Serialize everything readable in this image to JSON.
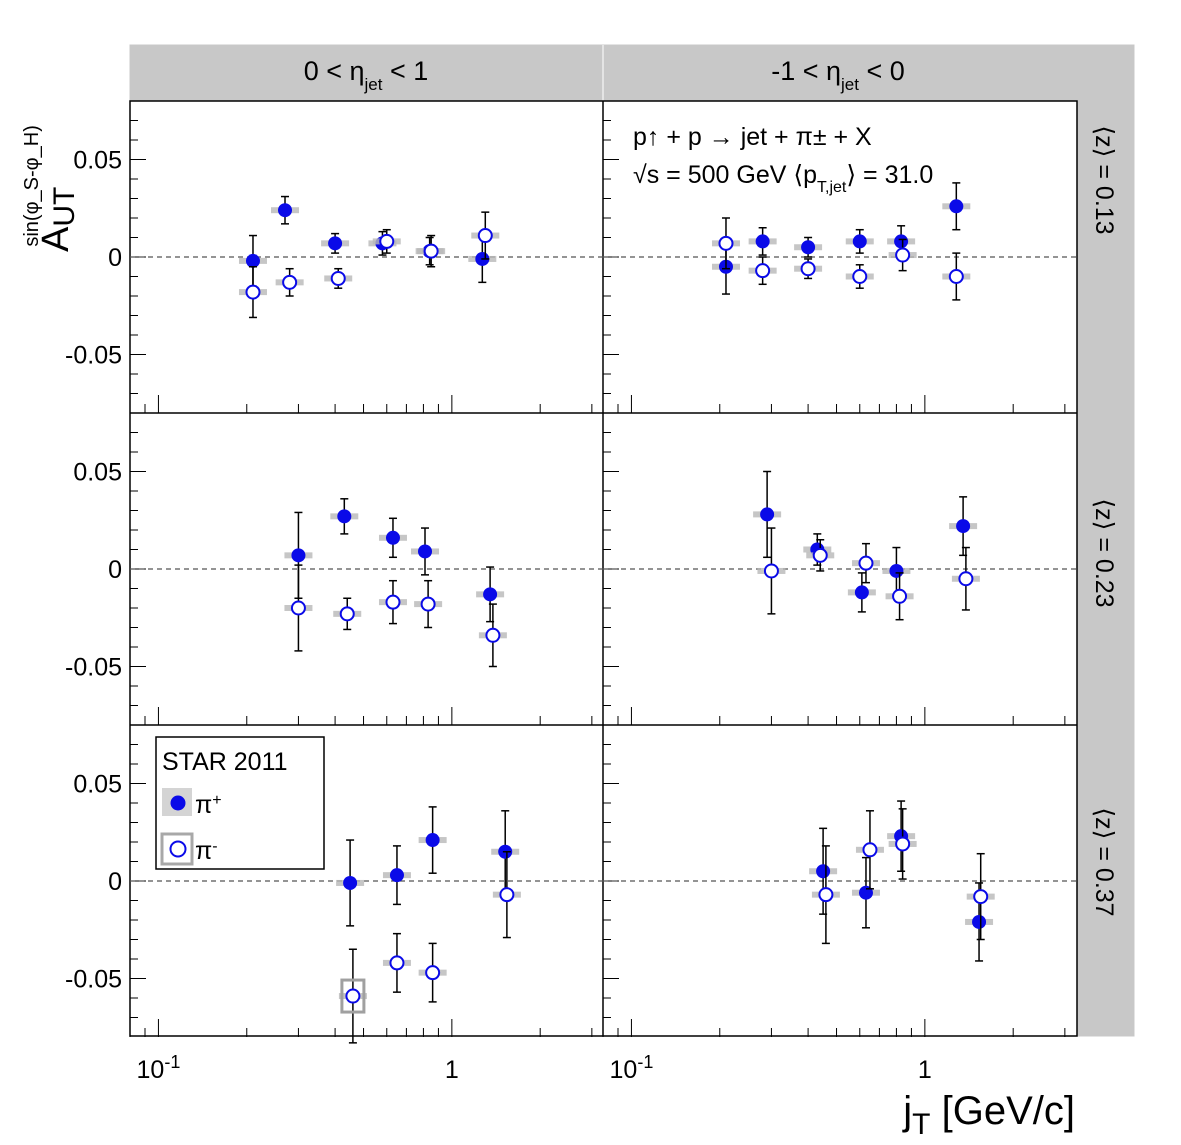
{
  "chart_data": {
    "type": "scatter",
    "experiment": "STAR 2011",
    "x_axis": {
      "label_main": "j",
      "label_sub": "T",
      "label_rest": " [GeV/c]",
      "scale": "log",
      "range": [
        0.08,
        3.3
      ],
      "tick_labels": [
        {
          "value": 0.1,
          "base": "10",
          "exp": "-1"
        },
        {
          "value": 1,
          "base": "1",
          "exp": ""
        }
      ]
    },
    "y_axis": {
      "label_main": "A",
      "label_sub": "UT",
      "label_sup": "sin(φ_S-φ_H)",
      "range": [
        -0.08,
        0.08
      ],
      "ticks": [
        0.05,
        0,
        -0.05
      ],
      "tick_labels": [
        "0.05",
        "0",
        "-0.05"
      ]
    },
    "columns": [
      {
        "pre": "0 < η",
        "sub": "jet",
        "post": " < 1"
      },
      {
        "pre": "-1 < η",
        "sub": "jet",
        "post": " < 0"
      }
    ],
    "rows": [
      "⟨z⟩ = 0.13",
      "⟨z⟩ = 0.23",
      "⟨z⟩ = 0.37"
    ],
    "annotation": {
      "line1": "p↑ + p → jet + π± + X",
      "line2_a": "√s = 500 GeV ⟨p",
      "line2_sub": "T,jet",
      "line2_b": "⟩ = 31.0"
    },
    "legend": {
      "title": "STAR 2011",
      "placement": "top-left of bottom-left panel",
      "entries": [
        {
          "label": "π",
          "sup": "+",
          "marker": "filled-circle"
        },
        {
          "label": "π",
          "sup": "-",
          "marker": "open-circle"
        }
      ]
    },
    "colors": {
      "marker": "#0a0ae8",
      "strip": "#c8c8c8",
      "syserr": "#a8a8a8"
    },
    "series": [
      {
        "name": "π+",
        "marker": "filled",
        "panels": [
          {
            "row": 0,
            "col": 0,
            "points": [
              {
                "x": 0.21,
                "y": -0.002,
                "err": 0.013
              },
              {
                "x": 0.27,
                "y": 0.024,
                "err": 0.007
              },
              {
                "x": 0.4,
                "y": 0.007,
                "err": 0.005
              },
              {
                "x": 0.58,
                "y": 0.007,
                "err": 0.006
              },
              {
                "x": 0.84,
                "y": 0.003,
                "err": 0.007
              },
              {
                "x": 1.27,
                "y": -0.001,
                "err": 0.012
              }
            ]
          },
          {
            "row": 0,
            "col": 1,
            "points": [
              {
                "x": 0.21,
                "y": -0.005,
                "err": 0.014
              },
              {
                "x": 0.28,
                "y": 0.008,
                "err": 0.007
              },
              {
                "x": 0.4,
                "y": 0.005,
                "err": 0.005
              },
              {
                "x": 0.6,
                "y": 0.008,
                "err": 0.006
              },
              {
                "x": 0.83,
                "y": 0.008,
                "err": 0.008
              },
              {
                "x": 1.28,
                "y": 0.026,
                "err": 0.012
              }
            ]
          },
          {
            "row": 1,
            "col": 0,
            "points": [
              {
                "x": 0.3,
                "y": 0.007,
                "err": 0.022
              },
              {
                "x": 0.43,
                "y": 0.027,
                "err": 0.009
              },
              {
                "x": 0.63,
                "y": 0.016,
                "err": 0.01
              },
              {
                "x": 0.81,
                "y": 0.009,
                "err": 0.012
              },
              {
                "x": 1.35,
                "y": -0.013,
                "err": 0.014
              }
            ]
          },
          {
            "row": 1,
            "col": 1,
            "points": [
              {
                "x": 0.29,
                "y": 0.028,
                "err": 0.022
              },
              {
                "x": 0.43,
                "y": 0.01,
                "err": 0.008
              },
              {
                "x": 0.61,
                "y": -0.012,
                "err": 0.01
              },
              {
                "x": 0.8,
                "y": -0.001,
                "err": 0.012
              },
              {
                "x": 1.35,
                "y": 0.022,
                "err": 0.015
              }
            ]
          },
          {
            "row": 2,
            "col": 0,
            "points": [
              {
                "x": 0.45,
                "y": -0.001,
                "err": 0.022
              },
              {
                "x": 0.65,
                "y": 0.003,
                "err": 0.015
              },
              {
                "x": 0.86,
                "y": 0.021,
                "err": 0.017
              },
              {
                "x": 1.52,
                "y": 0.015,
                "err": 0.021
              }
            ]
          },
          {
            "row": 2,
            "col": 1,
            "points": [
              {
                "x": 0.45,
                "y": 0.005,
                "err": 0.022
              },
              {
                "x": 0.63,
                "y": -0.006,
                "err": 0.018
              },
              {
                "x": 0.83,
                "y": 0.023,
                "err": 0.018
              },
              {
                "x": 1.53,
                "y": -0.021,
                "err": 0.02
              }
            ]
          }
        ]
      },
      {
        "name": "π-",
        "marker": "open",
        "panels": [
          {
            "row": 0,
            "col": 0,
            "points": [
              {
                "x": 0.21,
                "y": -0.018,
                "err": 0.013
              },
              {
                "x": 0.28,
                "y": -0.013,
                "err": 0.007
              },
              {
                "x": 0.41,
                "y": -0.011,
                "err": 0.005
              },
              {
                "x": 0.6,
                "y": 0.008,
                "err": 0.006
              },
              {
                "x": 0.85,
                "y": 0.003,
                "err": 0.008
              },
              {
                "x": 1.3,
                "y": 0.011,
                "err": 0.012
              }
            ]
          },
          {
            "row": 0,
            "col": 1,
            "points": [
              {
                "x": 0.21,
                "y": 0.007,
                "err": 0.013
              },
              {
                "x": 0.28,
                "y": -0.007,
                "err": 0.007
              },
              {
                "x": 0.4,
                "y": -0.006,
                "err": 0.005
              },
              {
                "x": 0.6,
                "y": -0.01,
                "err": 0.006
              },
              {
                "x": 0.84,
                "y": 0.001,
                "err": 0.008
              },
              {
                "x": 1.28,
                "y": -0.01,
                "err": 0.012
              }
            ]
          },
          {
            "row": 1,
            "col": 0,
            "points": [
              {
                "x": 0.3,
                "y": -0.02,
                "err": 0.022
              },
              {
                "x": 0.44,
                "y": -0.023,
                "err": 0.008
              },
              {
                "x": 0.63,
                "y": -0.017,
                "err": 0.011
              },
              {
                "x": 0.83,
                "y": -0.018,
                "err": 0.012
              },
              {
                "x": 1.38,
                "y": -0.034,
                "err": 0.016
              }
            ]
          },
          {
            "row": 1,
            "col": 1,
            "points": [
              {
                "x": 0.3,
                "y": -0.001,
                "err": 0.022
              },
              {
                "x": 0.44,
                "y": 0.007,
                "err": 0.008
              },
              {
                "x": 0.63,
                "y": 0.003,
                "err": 0.01
              },
              {
                "x": 0.82,
                "y": -0.014,
                "err": 0.012
              },
              {
                "x": 1.38,
                "y": -0.005,
                "err": 0.016
              }
            ]
          },
          {
            "row": 2,
            "col": 0,
            "points": [
              {
                "x": 0.46,
                "y": -0.059,
                "err": 0.024
              },
              {
                "x": 0.65,
                "y": -0.042,
                "err": 0.015
              },
              {
                "x": 0.86,
                "y": -0.047,
                "err": 0.015
              },
              {
                "x": 1.54,
                "y": -0.007,
                "err": 0.022
              }
            ]
          },
          {
            "row": 2,
            "col": 1,
            "points": [
              {
                "x": 0.46,
                "y": -0.007,
                "err": 0.025
              },
              {
                "x": 0.65,
                "y": 0.016,
                "err": 0.02
              },
              {
                "x": 0.84,
                "y": 0.019,
                "err": 0.018
              },
              {
                "x": 1.55,
                "y": -0.008,
                "err": 0.022
              }
            ]
          }
        ]
      }
    ]
  }
}
